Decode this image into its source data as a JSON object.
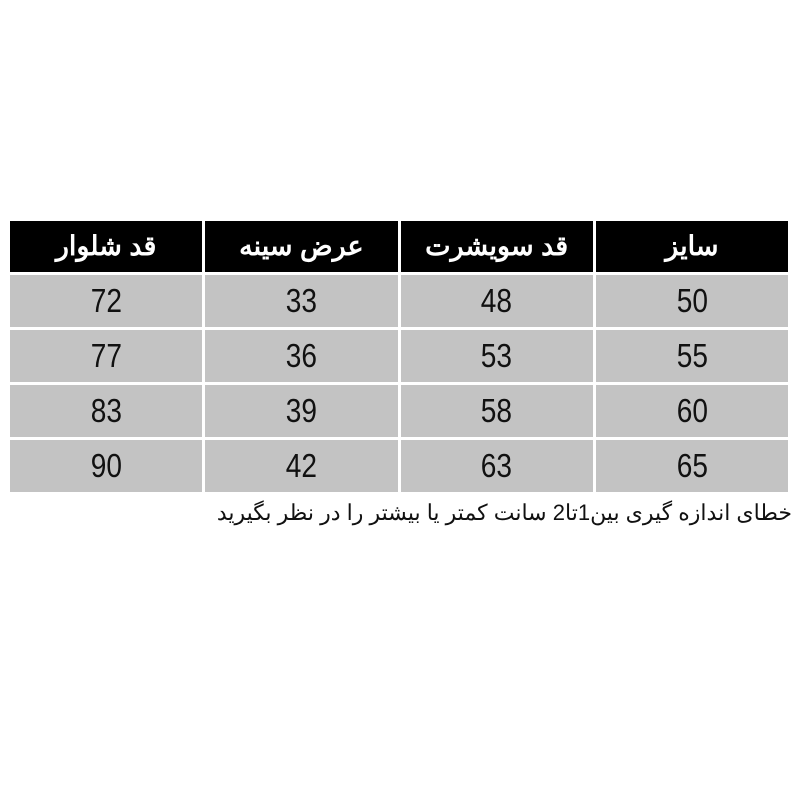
{
  "table": {
    "headers": [
      "سایز",
      "قد سویشرت",
      "عرض سینه",
      "قد شلوار"
    ],
    "rows": [
      [
        "50",
        "48",
        "33",
        "72"
      ],
      [
        "55",
        "53",
        "36",
        "77"
      ],
      [
        "60",
        "58",
        "39",
        "83"
      ],
      [
        "65",
        "63",
        "42",
        "90"
      ]
    ]
  },
  "note": "خطای اندازه گیری بین1تا2 سانت کمتر یا بیشتر را در نظر بگیرید",
  "colors": {
    "header_bg": "#000000",
    "cell_bg": "#c3c3c3"
  }
}
